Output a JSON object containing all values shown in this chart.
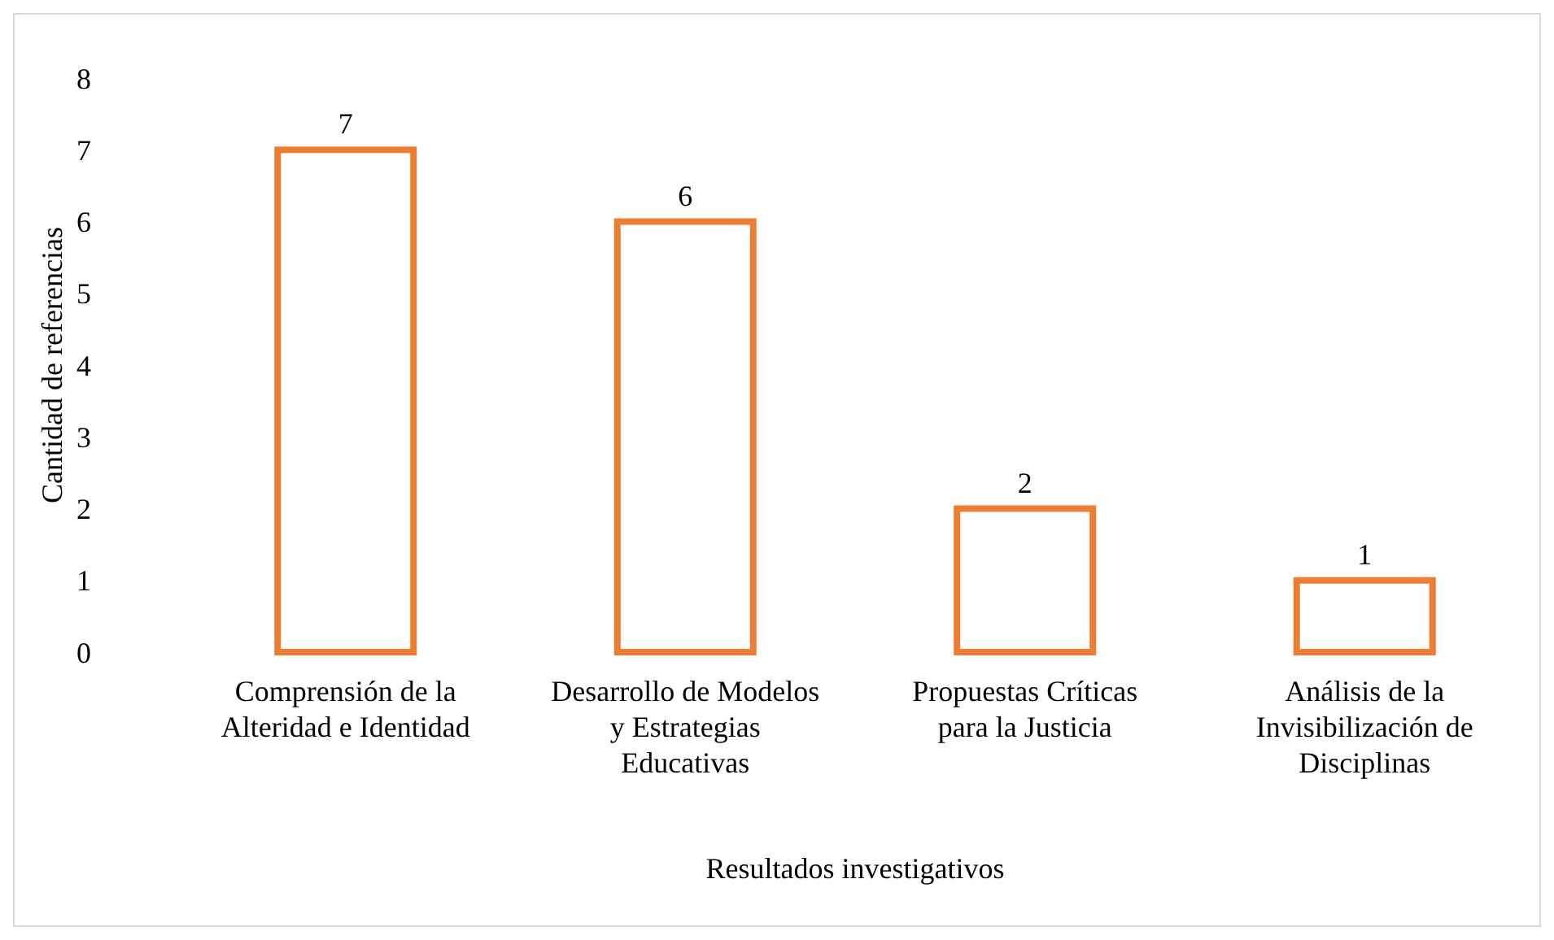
{
  "chart_data": {
    "type": "bar",
    "xlabel": "Resultados investigativos",
    "ylabel": "Cantidad de referencias",
    "categories": [
      "Comprensión de la Alteridad e Identidad",
      "Desarrollo de Modelos y Estrategias Educativas",
      "Propuestas Críticas para la Justicia",
      "Análisis de la Invisibilización de Disciplinas"
    ],
    "values": [
      7,
      6,
      2,
      1
    ],
    "color": "#ed7d31",
    "ylim": [
      0,
      8
    ],
    "yticks": [
      0,
      1,
      2,
      3,
      4,
      5,
      6,
      7,
      8
    ],
    "grid": false,
    "data_labels": true
  }
}
